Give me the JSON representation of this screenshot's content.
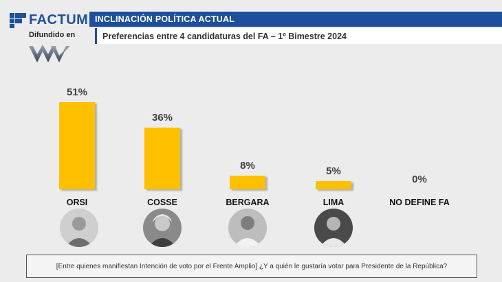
{
  "logo": {
    "brand": "FACTUM",
    "sub": "Difundido en",
    "brand_color": "#1f4f9a",
    "partner_icon": "partner-logo-icon"
  },
  "header": {
    "title": "INCLINACIÓN POLÍTICA ACTUAL",
    "subtitle": "Preferencias entre 4 candidaturas del FA – 1º Bimestre 2024",
    "bar_color": "#1d4f9c"
  },
  "chart_data": {
    "type": "bar",
    "categories": [
      "ORSI",
      "COSSE",
      "BERGARA",
      "LIMA",
      "NO DEFINE FA"
    ],
    "values": [
      51,
      36,
      8,
      5,
      0
    ],
    "value_labels": [
      "51%",
      "36%",
      "8%",
      "5%",
      "0%"
    ],
    "ylim": [
      0,
      55
    ],
    "bar_color": "#ffc000",
    "grid": false,
    "legend": "none"
  },
  "photos": [
    "orsi-photo",
    "cosse-photo",
    "bergara-photo",
    "lima-photo"
  ],
  "footer": {
    "question": "[Entre quienes manifiestan Intención de voto por el Frente Amplio] ¿Y a quién le gustaría votar para Presidente de la República?"
  }
}
